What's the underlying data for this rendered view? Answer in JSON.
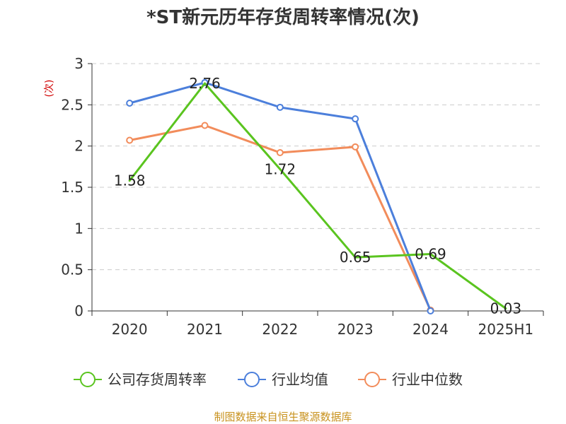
{
  "chart_data": {
    "type": "line",
    "title": "*ST新元历年存货周转率情况(次)",
    "ylabel": "(次)",
    "xlabel": "",
    "categories": [
      "2020",
      "2021",
      "2022",
      "2023",
      "2024",
      "2025H1"
    ],
    "ylim": [
      0,
      3
    ],
    "yticks": [
      "0",
      "0.5",
      "1",
      "1.5",
      "2",
      "2.5",
      "3"
    ],
    "grid": true,
    "legend_position": "bottom",
    "series": [
      {
        "name": "公司存货周转率",
        "color": "#5ac41f",
        "values": [
          1.58,
          2.76,
          1.72,
          0.65,
          0.69,
          0.03
        ],
        "labels": [
          "1.58",
          "2.76",
          "1.72",
          "0.65",
          "0.69",
          "0.03"
        ],
        "show_markers": false
      },
      {
        "name": "行业均值",
        "color": "#4c7fdb",
        "values": [
          2.52,
          2.77,
          2.47,
          2.33,
          0.0,
          null
        ],
        "show_markers": true
      },
      {
        "name": "行业中位数",
        "color": "#f28c5b",
        "values": [
          2.07,
          2.25,
          1.92,
          1.99,
          0.01,
          null
        ],
        "show_markers": true
      }
    ]
  },
  "source": "制图数据来自恒生聚源数据库"
}
